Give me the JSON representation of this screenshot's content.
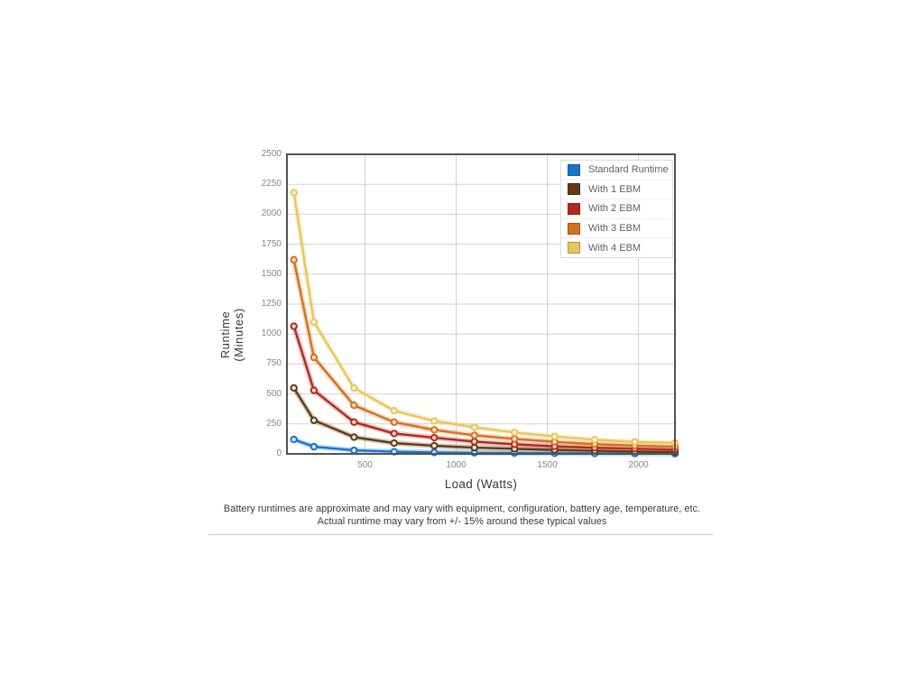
{
  "chart_data": {
    "type": "line",
    "xlabel": "Load (Watts)",
    "ylabel_line1": "Runtime",
    "ylabel_line2": "(Minutes)",
    "xlim": [
      72,
      2200
    ],
    "ylim": [
      0,
      2500
    ],
    "x_ticks": [
      500,
      1000,
      1500,
      2000
    ],
    "y_ticks": [
      0,
      250,
      500,
      750,
      1000,
      1250,
      1500,
      1750,
      2000,
      2250,
      2500
    ],
    "grid": true,
    "legend_position": "top-right",
    "x": [
      110,
      220,
      440,
      660,
      880,
      1100,
      1320,
      1540,
      1760,
      1980,
      2200
    ],
    "series": [
      {
        "name": "Standard Runtime",
        "color": "#1874cd",
        "marker_fill": "#d3e6f8",
        "values": [
          120,
          60,
          30,
          18,
          12,
          9,
          7,
          5,
          4,
          3,
          2
        ]
      },
      {
        "name": "With 1 EBM",
        "color": "#5f3c13",
        "marker_fill": "#efe6d8",
        "values": [
          550,
          280,
          140,
          90,
          68,
          52,
          43,
          33,
          26,
          20,
          15
        ]
      },
      {
        "name": "With 2 EBM",
        "color": "#b22a1d",
        "marker_fill": "#f6d9d4",
        "values": [
          1065,
          530,
          265,
          170,
          135,
          102,
          80,
          63,
          51,
          44,
          35
        ]
      },
      {
        "name": "With 3 EBM",
        "color": "#d4711f",
        "marker_fill": "#f9dfc4",
        "values": [
          1620,
          805,
          405,
          265,
          200,
          155,
          125,
          100,
          81,
          69,
          60
        ]
      },
      {
        "name": "With 4 EBM",
        "color": "#e9c65b",
        "marker_fill": "#fbf1d2",
        "values": [
          2180,
          1100,
          550,
          360,
          275,
          222,
          178,
          145,
          118,
          100,
          92
        ]
      }
    ]
  },
  "style": {
    "grid_color": "#d2d2d2",
    "border_color": "#525252",
    "tick_color": "#868686",
    "background": "#ffffff"
  },
  "footer": {
    "line1": "Battery runtimes are approximate and may vary with equipment, configuration, battery age, temperature, etc.",
    "line2": "Actual runtime may vary from +/- 15% around these typical values"
  }
}
